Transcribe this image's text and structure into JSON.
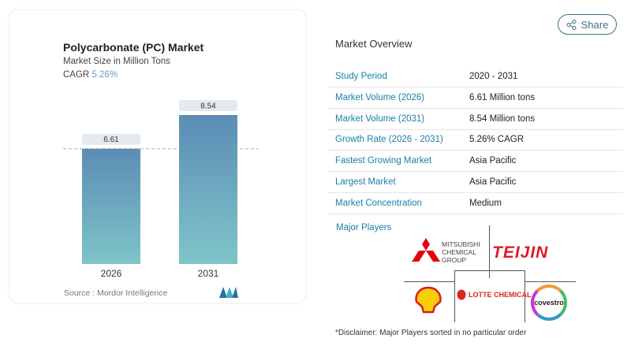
{
  "share_label": "Share",
  "chart_data": {
    "type": "bar",
    "title": "Polycarbonate (PC) Market",
    "subtitle": "Market Size in Million Tons",
    "cagr_label": "CAGR",
    "cagr_value": "5.26%",
    "categories": [
      "2026",
      "2031"
    ],
    "values": [
      6.61,
      8.54
    ],
    "data_labels": [
      "6.61",
      "8.54"
    ],
    "ylim": [
      0,
      8.54
    ],
    "grid": false,
    "reference_line": 6.61,
    "bar_colors": [
      "#5b8db5",
      "#7fc4c9"
    ],
    "source": "Source :  Mordor Intelligence"
  },
  "overview": {
    "title": "Market Overview",
    "rows": [
      {
        "label": "Study Period",
        "value": "2020 - 2031"
      },
      {
        "label": "Market Volume (2026)",
        "value": "6.61 Million tons"
      },
      {
        "label": "Market Volume (2031)",
        "value": "8.54 Million tons"
      },
      {
        "label": "Growth Rate (2026 - 2031)",
        "value": "5.26% CAGR"
      },
      {
        "label": "Fastest Growing Market",
        "value": "Asia Pacific"
      },
      {
        "label": "Largest Market",
        "value": "Asia Pacific"
      },
      {
        "label": "Market Concentration",
        "value": "Medium"
      }
    ],
    "major_players_label": "Major Players",
    "players": [
      "MITSUBISHI CHEMICAL GROUP",
      "TEIJIN",
      "Shell",
      "LOTTE CHEMICAL",
      "covestro"
    ],
    "disclaimer": "*Disclaimer: Major Players sorted in no particular order"
  }
}
